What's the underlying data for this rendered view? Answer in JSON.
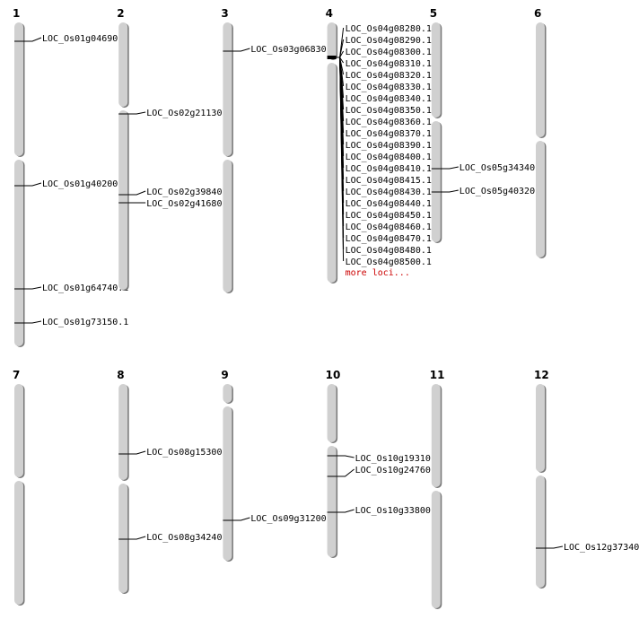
{
  "colors": {
    "chromosome_fill": "#d0d0d0",
    "chromosome_shadow": "#777777",
    "marker_line": "#000000",
    "more_link": "#cc0000"
  },
  "chromosomes": [
    {
      "name": "1",
      "loci": [
        "LOC_Os01g04690.1",
        "LOC_Os01g40200.1",
        "LOC_Os01g64740.1",
        "LOC_Os01g73150.1"
      ]
    },
    {
      "name": "2",
      "loci": [
        "LOC_Os02g21130.1",
        "LOC_Os02g39840.1",
        "LOC_Os02g41680.1"
      ]
    },
    {
      "name": "3",
      "loci": [
        "LOC_Os03g06830.1"
      ]
    },
    {
      "name": "4",
      "loci": [
        "LOC_Os04g08280.1",
        "LOC_Os04g08290.1",
        "LOC_Os04g08300.1",
        "LOC_Os04g08310.1",
        "LOC_Os04g08320.1",
        "LOC_Os04g08330.1",
        "LOC_Os04g08340.1",
        "LOC_Os04g08350.1",
        "LOC_Os04g08360.1",
        "LOC_Os04g08370.1",
        "LOC_Os04g08390.1",
        "LOC_Os04g08400.1",
        "LOC_Os04g08410.1",
        "LOC_Os04g08415.1",
        "LOC_Os04g08430.1",
        "LOC_Os04g08440.1",
        "LOC_Os04g08450.1",
        "LOC_Os04g08460.1",
        "LOC_Os04g08470.1",
        "LOC_Os04g08480.1",
        "LOC_Os04g08500.1"
      ],
      "more_label": "more loci..."
    },
    {
      "name": "5",
      "loci": [
        "LOC_Os05g34340.1",
        "LOC_Os05g40320.1"
      ]
    },
    {
      "name": "6",
      "loci": []
    },
    {
      "name": "7",
      "loci": []
    },
    {
      "name": "8",
      "loci": [
        "LOC_Os08g15300.1",
        "LOC_Os08g34240.1"
      ]
    },
    {
      "name": "9",
      "loci": [
        "LOC_Os09g31200.1"
      ]
    },
    {
      "name": "10",
      "loci": [
        "LOC_Os10g19310.1",
        "LOC_Os10g24760.1",
        "LOC_Os10g33800.1"
      ]
    },
    {
      "name": "11",
      "loci": []
    },
    {
      "name": "12",
      "loci": [
        "LOC_Os12g37340.1"
      ]
    }
  ]
}
